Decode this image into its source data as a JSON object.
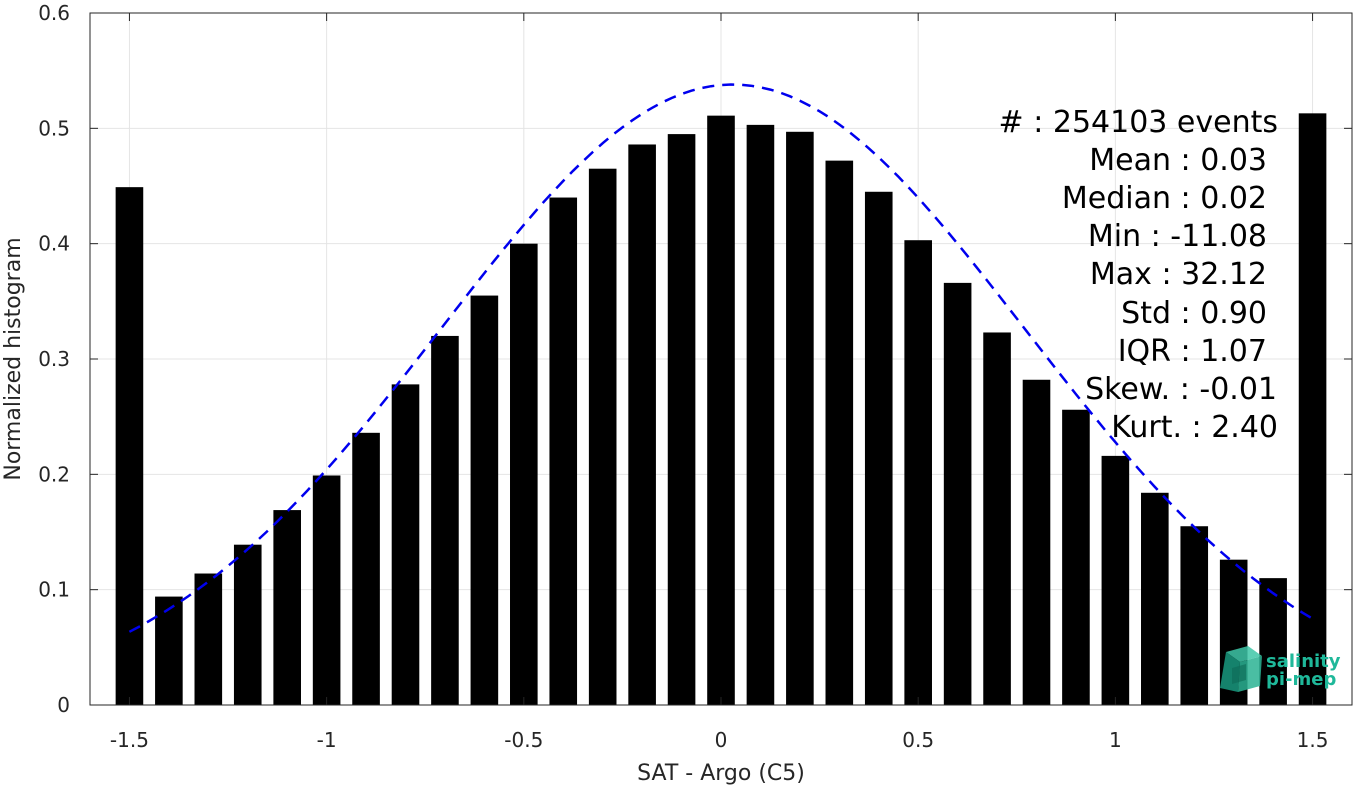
{
  "chart_data": {
    "type": "bar",
    "title": "",
    "xlabel": "SAT - Argo (C5)",
    "ylabel": "Normalized histogram",
    "xlim": [
      -1.6,
      1.6
    ],
    "ylim": [
      0,
      0.6
    ],
    "xticks": [
      -1.5,
      -1,
      -0.5,
      0,
      0.5,
      1,
      1.5
    ],
    "xtick_labels": [
      "-1.5",
      "-1",
      "-0.5",
      "0",
      "0.5",
      "1",
      "1.5"
    ],
    "yticks": [
      0,
      0.1,
      0.2,
      0.3,
      0.4,
      0.5,
      0.6
    ],
    "ytick_labels": [
      "0",
      "0.1",
      "0.2",
      "0.3",
      "0.4",
      "0.5",
      "0.6"
    ],
    "grid": true,
    "bar_color": "#000000",
    "bar_width": 0.07,
    "x": [
      -1.5,
      -1.4,
      -1.3,
      -1.2,
      -1.1,
      -1.0,
      -0.9,
      -0.8,
      -0.7,
      -0.6,
      -0.5,
      -0.4,
      -0.3,
      -0.2,
      -0.1,
      0.0,
      0.1,
      0.2,
      0.3,
      0.4,
      0.5,
      0.6,
      0.7,
      0.8,
      0.9,
      1.0,
      1.1,
      1.2,
      1.3,
      1.4,
      1.5
    ],
    "values": [
      0.449,
      0.094,
      0.114,
      0.139,
      0.169,
      0.199,
      0.236,
      0.278,
      0.32,
      0.355,
      0.4,
      0.44,
      0.465,
      0.486,
      0.495,
      0.511,
      0.503,
      0.497,
      0.472,
      0.445,
      0.403,
      0.366,
      0.323,
      0.282,
      0.256,
      0.216,
      0.184,
      0.155,
      0.126,
      0.11,
      0.513
    ],
    "fit_curve": {
      "type": "gaussian",
      "color": "#0000ee",
      "style": "dashed",
      "x_range": [
        -1.5,
        1.5
      ],
      "mean": 0.03,
      "std": 0.74,
      "peak": 0.538
    }
  },
  "stats": [
    "#  : 254103 events",
    "Mean : 0.03",
    "Median : 0.02",
    "Min : -11.08",
    "Max : 32.12",
    "Std : 0.90",
    "IQR : 1.07",
    "Skew. : -0.01",
    "Kurt. : 2.40"
  ],
  "logo": {
    "line1": "salinity",
    "line2": "pi-mep",
    "color": "#1fb89a"
  }
}
